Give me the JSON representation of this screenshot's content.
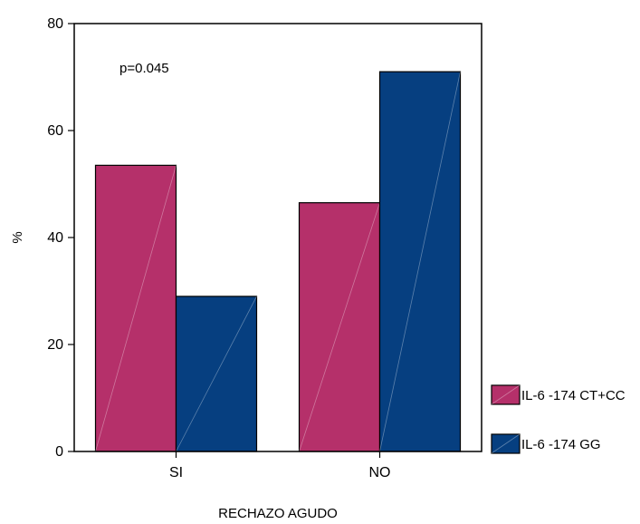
{
  "chart_data": {
    "type": "bar",
    "categories": [
      "SI",
      "NO"
    ],
    "series": [
      {
        "name": "IL-6 -174 CT+CC",
        "values": [
          53.5,
          46.5
        ],
        "color": "#b5306a"
      },
      {
        "name": "IL-6 -174 GG",
        "values": [
          29,
          71
        ],
        "color": "#063f80"
      }
    ],
    "ylim": [
      0,
      80
    ],
    "yticks": [
      0,
      20,
      40,
      60,
      80
    ],
    "xlabel": "RECHAZO AGUDO",
    "ylabel": "%",
    "annotation": "p=0.045",
    "legend_position": "bottom-right",
    "grid": false
  }
}
